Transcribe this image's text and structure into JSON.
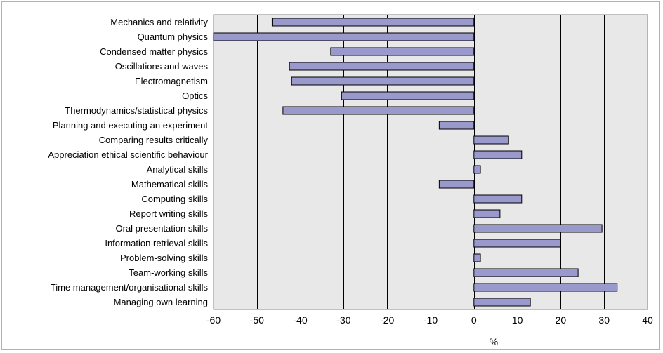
{
  "chart_data": {
    "type": "bar",
    "orientation": "horizontal",
    "categories": [
      "Mechanics and relativity",
      "Quantum physics",
      "Condensed matter physics",
      "Oscillations and waves",
      "Electromagnetism",
      "Optics",
      "Thermodynamics/statistical physics",
      "Planning and executing an experiment",
      "Comparing results critically",
      "Appreciation ethical scientific behaviour",
      "Analytical skills",
      "Mathematical skills",
      "Computing skills",
      "Report writing skills",
      "Oral presentation skills",
      "Information retrieval skills",
      "Problem-solving skills",
      "Team-working skills",
      "Time management/organisational skills",
      "Managing own learning"
    ],
    "values": [
      -46.5,
      -60,
      -33,
      -42.5,
      -42,
      -30.5,
      -44,
      -8,
      8,
      11,
      1.5,
      -8,
      11,
      6,
      29.5,
      20,
      1.5,
      24,
      33,
      13
    ],
    "xlabel": "%",
    "ylabel": "",
    "title": "",
    "xlim": [
      -60,
      40
    ],
    "xticks": [
      -60,
      -50,
      -40,
      -30,
      -20,
      -10,
      0,
      10,
      20,
      30,
      40
    ],
    "grid": "vertical",
    "legend": "none",
    "colors": {
      "bar_fill": "#9999cc",
      "bar_stroke": "#000000",
      "plot_background": "#e8e8e8",
      "gridline": "#000000",
      "frame_border": "#9ab7d6"
    }
  }
}
